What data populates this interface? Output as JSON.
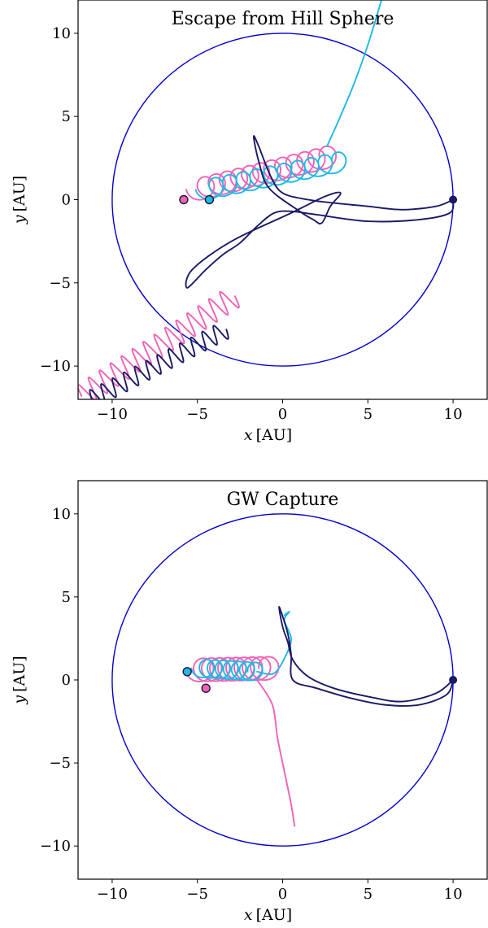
{
  "chart_data": [
    {
      "type": "line",
      "title": "Escape from Hill Sphere",
      "xlabel": {
        "var": "x",
        "unit": "[AU]"
      },
      "ylabel": {
        "var": "y",
        "unit": "[AU]"
      },
      "xlim": [
        -12,
        12
      ],
      "ylim": [
        -12,
        12
      ],
      "xticks": [
        -10,
        -5,
        0,
        5,
        10
      ],
      "yticks": [
        -10,
        -5,
        0,
        5,
        10
      ],
      "xtick_labels": [
        "−10",
        "−5",
        "0",
        "5",
        "10"
      ],
      "ytick_labels": [
        "−10",
        "−5",
        "0",
        "5",
        "10"
      ],
      "grid": false,
      "hill_sphere": {
        "center": [
          0,
          0
        ],
        "radius": 10,
        "color": "#0000cc"
      },
      "series": [
        {
          "color": "#1a1a66",
          "kind": "tertiary",
          "marker": [
            10,
            0
          ],
          "path": [
            [
              10,
              0
            ],
            [
              9.8,
              -0.8
            ],
            [
              8,
              -1.2
            ],
            [
              5,
              -1.3
            ],
            [
              2,
              -0.9
            ],
            [
              0.5,
              -0.7
            ],
            [
              -0.5,
              -0.8
            ],
            [
              -1.5,
              -1.6
            ],
            [
              -2.5,
              -2.6
            ],
            [
              -3.5,
              -3.3
            ],
            [
              -4.5,
              -4.2
            ],
            [
              -5.6,
              -5.3
            ],
            [
              -5.3,
              -4.2
            ],
            [
              -3,
              -2.5
            ],
            [
              0.5,
              -0.8
            ],
            [
              2.5,
              0.2
            ],
            [
              3.4,
              0.4
            ],
            [
              2.8,
              -0.4
            ],
            [
              2.3,
              -1.4
            ],
            [
              1.8,
              -1.2
            ],
            [
              1,
              -0.7
            ],
            [
              -0.8,
              0.7
            ],
            [
              -1.4,
              2.3
            ],
            [
              -1.7,
              3.8
            ],
            [
              -1.4,
              3.2
            ],
            [
              -0.7,
              1.4
            ],
            [
              0,
              0.4
            ],
            [
              1.5,
              0
            ],
            [
              3,
              -0.2
            ],
            [
              5,
              -0.4
            ],
            [
              7,
              -0.6
            ],
            [
              9,
              -0.4
            ],
            [
              10,
              0
            ]
          ],
          "wiggle_tail": {
            "from": [
              -3.3,
              -7.8
            ],
            "to": [
              -11.2,
              -12
            ],
            "loops": 12,
            "amplitude": 0.55
          }
        },
        {
          "color": "#f062b4",
          "kind": "inner_binary_a",
          "marker": [
            -5.8,
            0
          ],
          "spiral": {
            "from": [
              -5.0,
              0.6
            ],
            "to": [
              2.8,
              2.6
            ],
            "radius": 0.65,
            "loops": 12
          },
          "wiggle_tail": {
            "from": [
              -2.8,
              -5.8
            ],
            "to": [
              -11.8,
              -11.8
            ],
            "loops": 14,
            "amplitude": 0.7
          }
        },
        {
          "color": "#1eb8e8",
          "kind": "inner_binary_b",
          "marker": [
            -4.3,
            0
          ],
          "spiral": {
            "from": [
              -4.5,
              0.6
            ],
            "to": [
              3.5,
              2.3
            ],
            "radius": 0.6,
            "loops": 10
          },
          "escape": [
            [
              2.6,
              3.2
            ],
            [
              3.3,
              4.8
            ],
            [
              4.2,
              7
            ],
            [
              5.0,
              9.3
            ],
            [
              5.8,
              12
            ]
          ]
        }
      ]
    },
    {
      "type": "line",
      "title": "GW Capture",
      "xlabel": {
        "var": "x",
        "unit": "[AU]"
      },
      "ylabel": {
        "var": "y",
        "unit": "[AU]"
      },
      "xlim": [
        -12,
        12
      ],
      "ylim": [
        -12,
        12
      ],
      "xticks": [
        -10,
        -5,
        0,
        5,
        10
      ],
      "yticks": [
        -10,
        -5,
        0,
        5,
        10
      ],
      "xtick_labels": [
        "−10",
        "−5",
        "0",
        "5",
        "10"
      ],
      "ytick_labels": [
        "−10",
        "−5",
        "0",
        "5",
        "10"
      ],
      "grid": false,
      "hill_sphere": {
        "center": [
          0,
          0
        ],
        "radius": 10,
        "color": "#0000cc"
      },
      "series": [
        {
          "color": "#1a1a66",
          "kind": "tertiary",
          "marker": [
            10,
            0
          ],
          "path": [
            [
              10,
              0
            ],
            [
              9.6,
              -0.9
            ],
            [
              8,
              -1.5
            ],
            [
              6,
              -1.5
            ],
            [
              4,
              -1.1
            ],
            [
              2,
              -0.5
            ],
            [
              0.6,
              0
            ],
            [
              0.5,
              1.5
            ],
            [
              0.3,
              2.8
            ],
            [
              -0.2,
              4.4
            ],
            [
              0,
              3.2
            ],
            [
              0.3,
              2.3
            ],
            [
              0.6,
              1.2
            ],
            [
              1.5,
              0.2
            ],
            [
              3,
              -0.5
            ],
            [
              5,
              -1
            ],
            [
              7,
              -1.3
            ],
            [
              9,
              -0.8
            ],
            [
              10,
              0
            ]
          ]
        },
        {
          "color": "#f062b4",
          "kind": "inner_binary_a",
          "marker": [
            -4.5,
            -0.5
          ],
          "spiral": {
            "from": [
              -5.0,
              0.6
            ],
            "to": [
              -0.7,
              0.7
            ],
            "radius": 0.7,
            "loops": 9
          },
          "path": [
            [
              -1.5,
              0
            ],
            [
              -0.6,
              -1.5
            ],
            [
              -0.3,
              -3.5
            ],
            [
              0.1,
              -5.5
            ],
            [
              0.5,
              -7.5
            ],
            [
              0.7,
              -8.8
            ]
          ]
        },
        {
          "color": "#1eb8e8",
          "kind": "inner_binary_b",
          "marker": [
            -5.6,
            0.5
          ],
          "spiral": {
            "from": [
              -4.8,
              0.7
            ],
            "to": [
              -1.5,
              0.5
            ],
            "radius": 0.55,
            "loops": 7
          },
          "path": [
            [
              -1.5,
              0.5
            ],
            [
              -0.5,
              0.4
            ],
            [
              0.2,
              1.5
            ],
            [
              0.5,
              2.5
            ],
            [
              0.1,
              3.6
            ],
            [
              0.4,
              4.1
            ],
            [
              0.1,
              3.9
            ]
          ]
        }
      ]
    }
  ]
}
